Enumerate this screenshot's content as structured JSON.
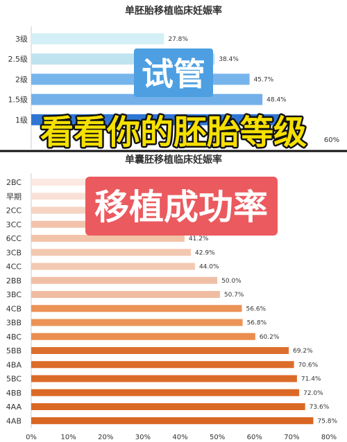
{
  "chart_data": [
    {
      "type": "bar",
      "orientation": "horizontal",
      "title": "单胚胎移植临床妊娠率",
      "categories": [
        "3级",
        "2.5级",
        "2级",
        "1.5级",
        "1级"
      ],
      "values": [
        27.8,
        38.4,
        45.7,
        48.4,
        52
      ],
      "value_labels": [
        "27.8%",
        "38.4%",
        "45.7%",
        "48.4%",
        ""
      ],
      "xlim": [
        0,
        60
      ],
      "xticks": [
        "60%"
      ],
      "grid": false,
      "colors": [
        "#d4f0f6",
        "#bfe3ef",
        "#78b4ec",
        "#73b0ea",
        "#2f76d4"
      ]
    },
    {
      "type": "bar",
      "orientation": "horizontal",
      "title": "单囊胚移植临床妊娠率",
      "categories": [
        "2BC",
        "早期",
        "2CC",
        "3CC",
        "6CC",
        "3CB",
        "4CC",
        "2BB",
        "3BC",
        "4CB",
        "3BB",
        "4BC",
        "5BB",
        "4BA",
        "5BC",
        "4BB",
        "4AA",
        "4AB"
      ],
      "values": [
        28,
        30,
        33,
        38,
        41.2,
        42.9,
        44.0,
        50.0,
        50.7,
        56.6,
        56.8,
        60.2,
        69.2,
        70.6,
        71.4,
        72.0,
        73.6,
        75.8
      ],
      "value_labels": [
        "",
        "",
        "",
        "",
        "41.2%",
        "42.9%",
        "44.0%",
        "50.0%",
        "50.7%",
        "56.6%",
        "56.8%",
        "60.2%",
        "69.2%",
        "70.6%",
        "71.4%",
        "72.0%",
        "73.6%",
        "75.8%"
      ],
      "xlim": [
        0,
        80
      ],
      "xticks": [
        "0%",
        "10%",
        "20%",
        "30%",
        "40%",
        "50%",
        "60%",
        "70%",
        "80%"
      ],
      "grid": false,
      "colors": [
        "#fbe9e2",
        "#f9e1d7",
        "#f6d3c3",
        "#f2c2aa",
        "#f2c3a9",
        "#f3c8b1",
        "#f3c9b2",
        "#f0c0a6",
        "#efbca1",
        "#ec9357",
        "#ec9357",
        "#ea8d4f",
        "#dd6f2e",
        "#dc6c2a",
        "#db6a28",
        "#db6a27",
        "#da6825",
        "#d96622"
      ]
    }
  ],
  "overlays": {
    "tube_badge": {
      "text": "试管",
      "bg": "#4d9fe2",
      "color": "#ffffff"
    },
    "grade_banner": {
      "text": "看看你的胚胎等级",
      "fill": "#f6e000",
      "stroke": "#111111"
    },
    "rate_badge": {
      "text": "移植成功率",
      "bg": "#eb5a5f",
      "color": "#ffffff"
    }
  },
  "divider_color": "#111111"
}
